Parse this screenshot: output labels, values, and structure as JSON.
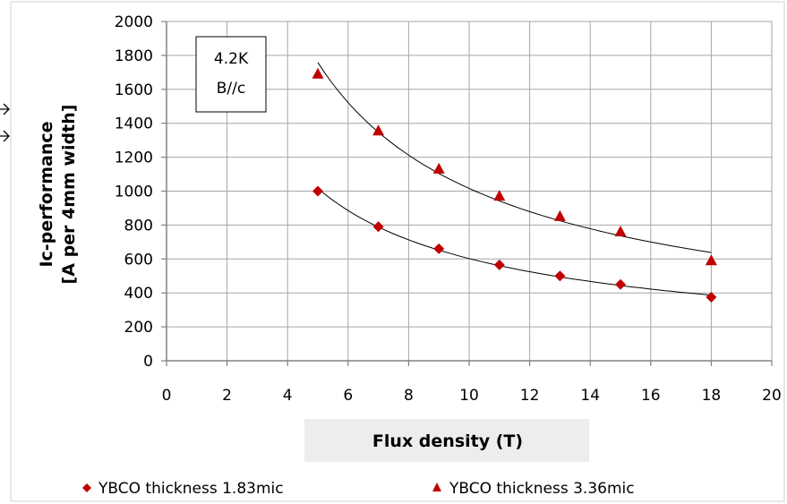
{
  "chart_data": {
    "type": "scatter",
    "xlabel": "Flux density (T)",
    "ylabel": [
      "Ic-performance",
      "[A per 4mm width]"
    ],
    "xlim": [
      0,
      20
    ],
    "ylim": [
      0,
      2000
    ],
    "x_ticks": [
      0,
      2,
      4,
      6,
      8,
      10,
      12,
      14,
      16,
      18,
      20
    ],
    "y_ticks": [
      0,
      200,
      400,
      600,
      800,
      1000,
      1200,
      1400,
      1600,
      1800,
      2000
    ],
    "grid": true,
    "legend_position": "bottom",
    "annotation": [
      "4.2K",
      "B//c"
    ],
    "series": [
      {
        "name": "YBCO thickness 1.83mic",
        "marker": "diamond",
        "color": "#c00000",
        "x": [
          5,
          7,
          9,
          11,
          13,
          15,
          18
        ],
        "y": [
          1000,
          790,
          660,
          565,
          500,
          450,
          375
        ],
        "trendline": "power"
      },
      {
        "name": "YBCO thickness 3.36mic",
        "marker": "triangle",
        "color": "#c00000",
        "x": [
          5,
          7,
          9,
          11,
          13,
          15,
          18
        ],
        "y": [
          1690,
          1355,
          1130,
          970,
          850,
          760,
          590
        ],
        "trendline": "power"
      }
    ]
  }
}
